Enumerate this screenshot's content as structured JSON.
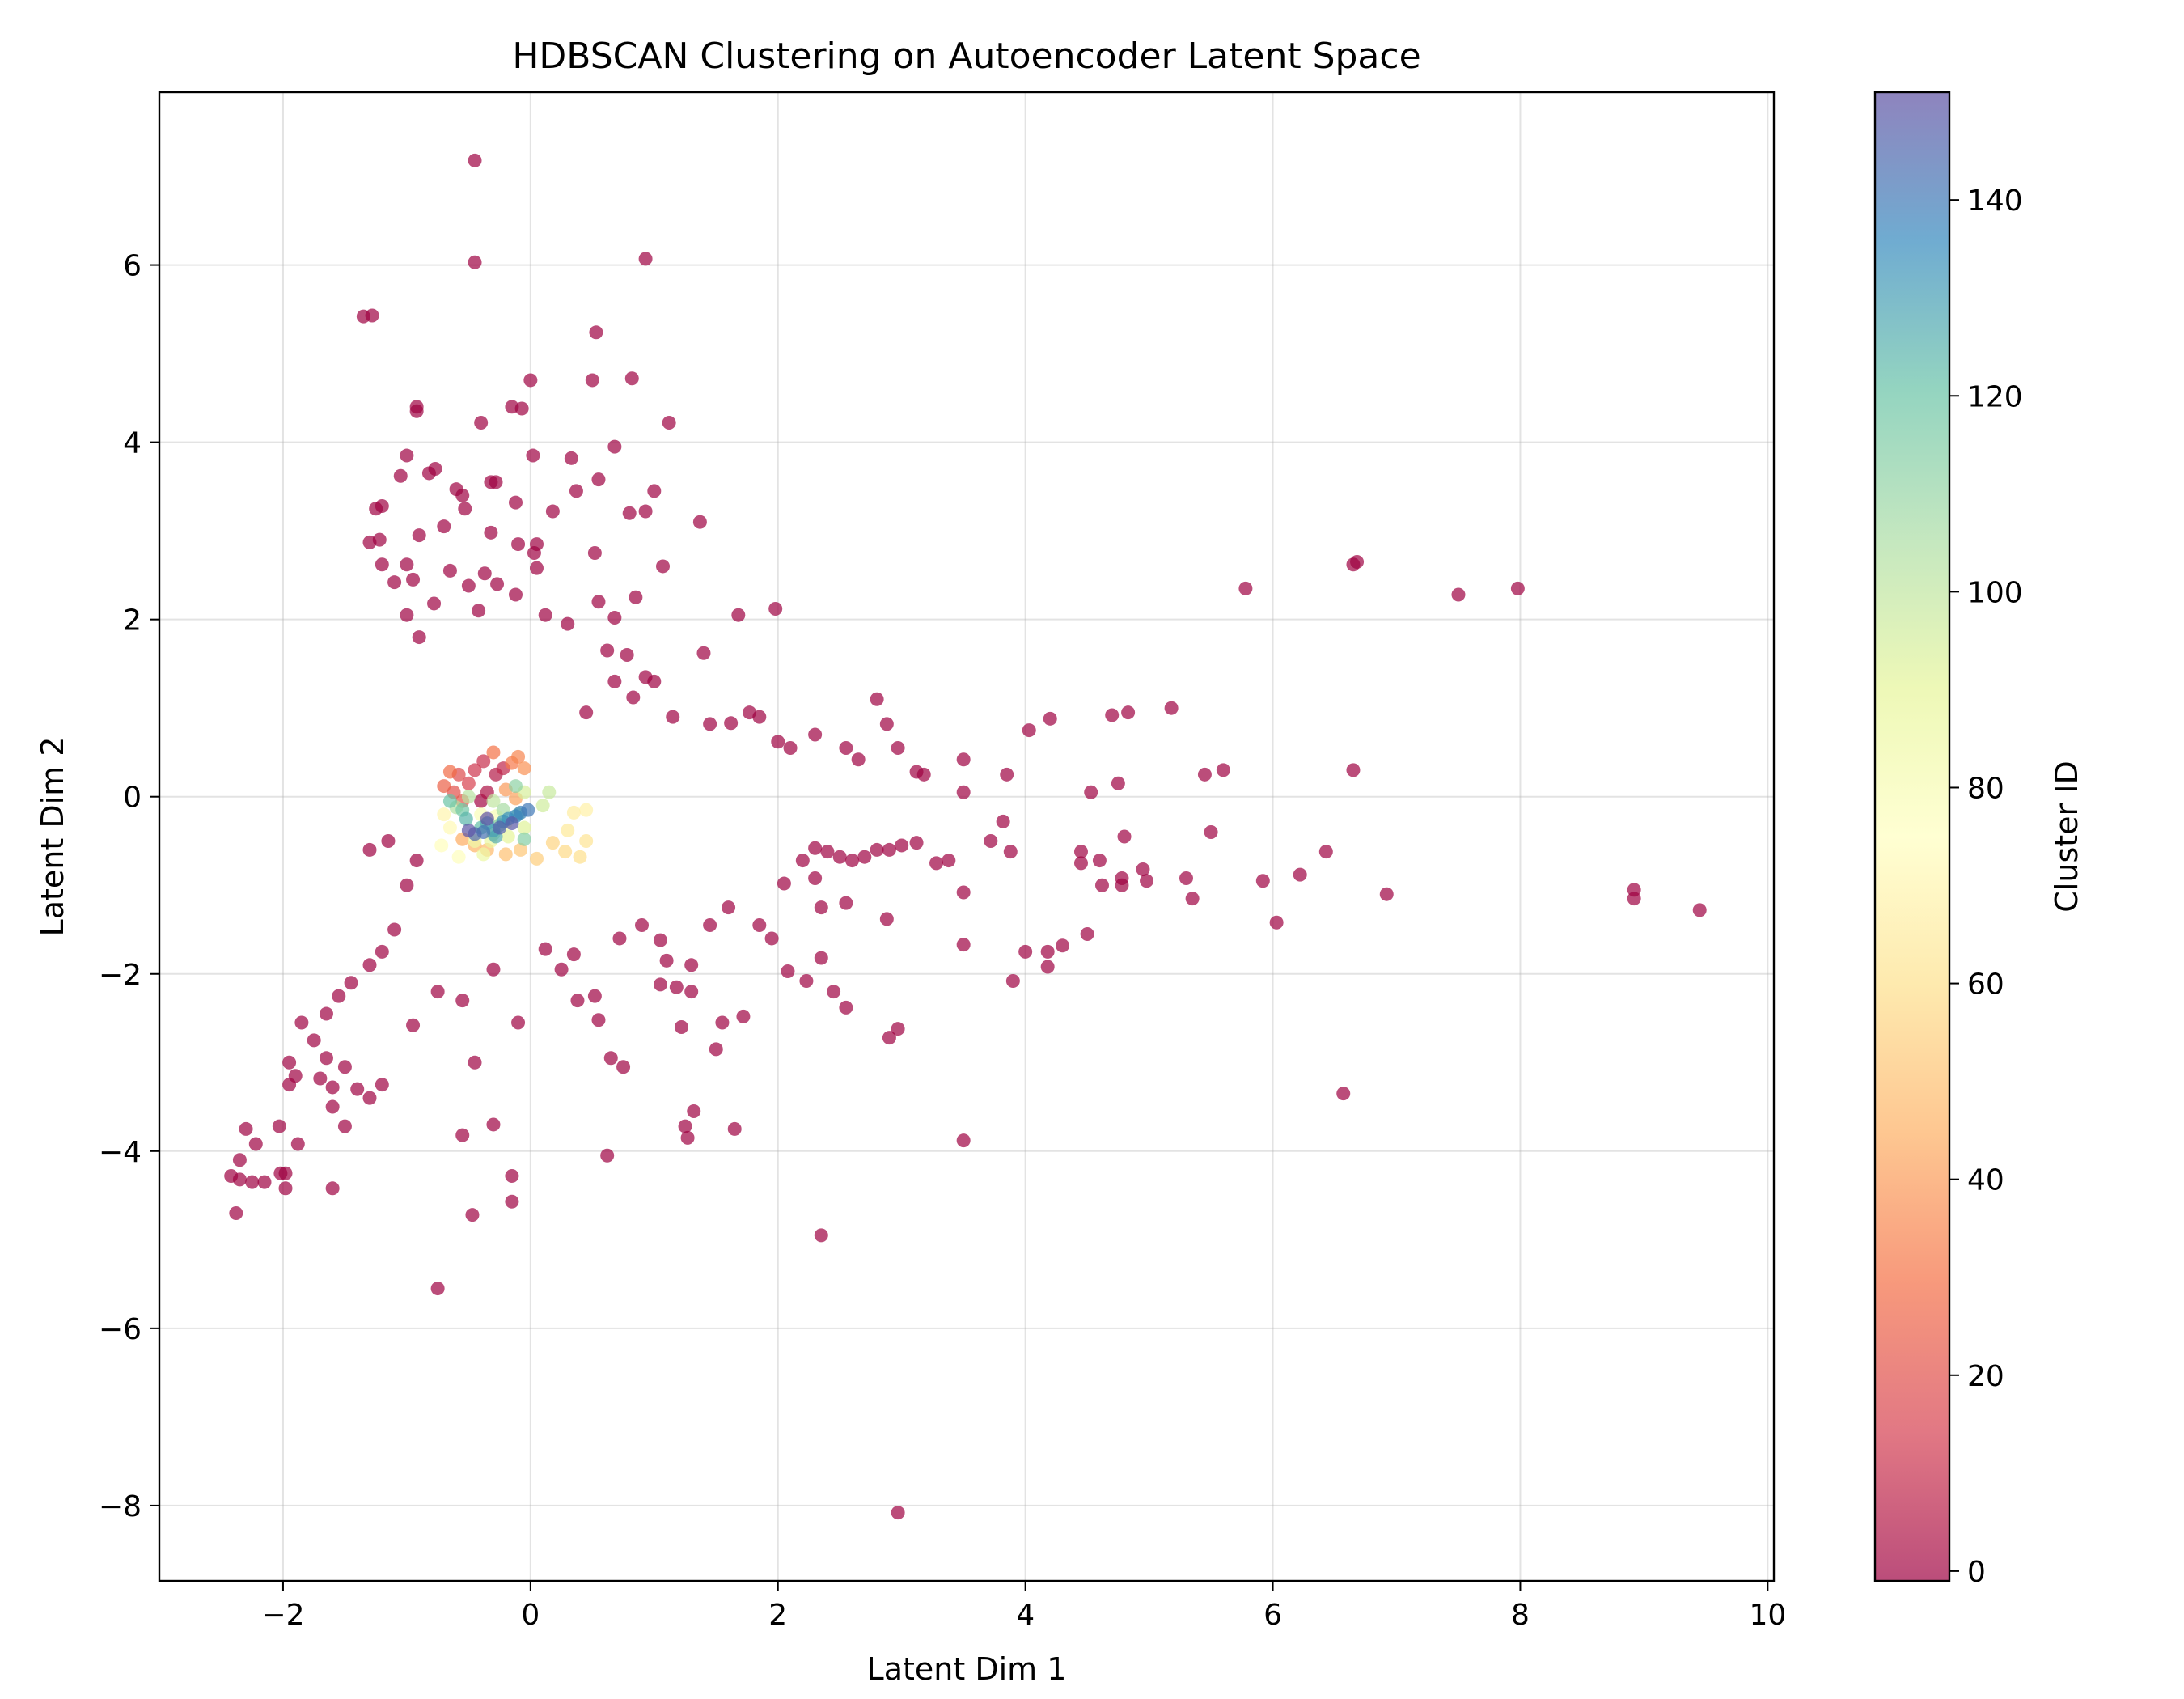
{
  "chart_data": {
    "type": "scatter",
    "title": "HDBSCAN Clustering on Autoencoder Latent Space",
    "xlabel": "Latent Dim 1",
    "ylabel": "Latent Dim 2",
    "xlim": [
      -3.0,
      10.05
    ],
    "ylim": [
      -8.85,
      7.95
    ],
    "xticks": [
      -2,
      0,
      2,
      4,
      6,
      8,
      10
    ],
    "yticks": [
      -8,
      -6,
      -4,
      -2,
      0,
      2,
      4,
      6
    ],
    "xtick_labels": [
      "−2",
      "0",
      "2",
      "4",
      "6",
      "8",
      "10"
    ],
    "ytick_labels": [
      "−8",
      "−6",
      "−4",
      "−2",
      "0",
      "2",
      "4",
      "6"
    ],
    "grid": true,
    "marker_alpha": 0.7,
    "colormap": "Spectral",
    "colorbar": {
      "label": "Cluster ID",
      "range": [
        -1,
        151
      ],
      "ticks": [
        0,
        20,
        40,
        60,
        80,
        100,
        120,
        140
      ],
      "tick_labels": [
        "0",
        "20",
        "40",
        "60",
        "80",
        "100",
        "120",
        "140"
      ],
      "colors": [
        "#9e0142",
        "#d53e4f",
        "#f46d43",
        "#fdae61",
        "#fee08b",
        "#ffffbf",
        "#e6f598",
        "#abdda4",
        "#66c2a5",
        "#3288bd",
        "#5e4fa2"
      ]
    },
    "points": [
      [
        -0.45,
        7.18,
        -1
      ],
      [
        -0.45,
        6.03,
        -1
      ],
      [
        0.93,
        6.07,
        -1
      ],
      [
        -1.35,
        5.42,
        -1
      ],
      [
        -1.28,
        5.43,
        -1
      ],
      [
        0.53,
        5.24,
        -1
      ],
      [
        0.0,
        4.7,
        -1
      ],
      [
        0.5,
        4.7,
        -1
      ],
      [
        0.82,
        4.72,
        -1
      ],
      [
        -0.92,
        4.35,
        -1
      ],
      [
        -0.92,
        4.4,
        -1
      ],
      [
        -0.4,
        4.22,
        -1
      ],
      [
        -0.15,
        4.4,
        -1
      ],
      [
        -0.07,
        4.38,
        -1
      ],
      [
        1.12,
        4.22,
        -1
      ],
      [
        0.68,
        3.95,
        -1
      ],
      [
        0.02,
        3.85,
        -1
      ],
      [
        0.33,
        3.82,
        -1
      ],
      [
        -1.0,
        3.85,
        -1
      ],
      [
        -1.05,
        3.62,
        -1
      ],
      [
        -0.82,
        3.65,
        -1
      ],
      [
        -0.77,
        3.7,
        -1
      ],
      [
        -0.32,
        3.55,
        -1
      ],
      [
        -0.28,
        3.55,
        -1
      ],
      [
        0.55,
        3.58,
        -1
      ],
      [
        -0.6,
        3.47,
        -1
      ],
      [
        -0.55,
        3.4,
        -1
      ],
      [
        -1.2,
        3.28,
        -1
      ],
      [
        -1.25,
        3.25,
        -1
      ],
      [
        -0.53,
        3.25,
        -1
      ],
      [
        -0.12,
        3.32,
        -1
      ],
      [
        0.37,
        3.45,
        -1
      ],
      [
        1.0,
        3.45,
        -1
      ],
      [
        0.93,
        3.22,
        -1
      ],
      [
        0.8,
        3.2,
        -1
      ],
      [
        0.18,
        3.22,
        -1
      ],
      [
        1.37,
        3.1,
        -1
      ],
      [
        -1.3,
        2.87,
        -1
      ],
      [
        -1.22,
        2.9,
        -1
      ],
      [
        -0.9,
        2.95,
        -1
      ],
      [
        -0.7,
        3.05,
        -1
      ],
      [
        -0.32,
        2.98,
        -1
      ],
      [
        -0.1,
        2.85,
        -1
      ],
      [
        0.05,
        2.85,
        -1
      ],
      [
        0.52,
        2.75,
        -1
      ],
      [
        0.03,
        2.75,
        -1
      ],
      [
        -1.2,
        2.62,
        -1
      ],
      [
        -1.0,
        2.62,
        -1
      ],
      [
        -0.65,
        2.55,
        -1
      ],
      [
        -0.37,
        2.52,
        -1
      ],
      [
        -1.1,
        2.42,
        -1
      ],
      [
        -0.95,
        2.45,
        -1
      ],
      [
        -0.5,
        2.38,
        -1
      ],
      [
        -0.27,
        2.4,
        -1
      ],
      [
        0.05,
        2.58,
        -1
      ],
      [
        -0.12,
        2.28,
        -1
      ],
      [
        0.55,
        2.2,
        -1
      ],
      [
        0.85,
        2.25,
        -1
      ],
      [
        1.07,
        2.6,
        -1
      ],
      [
        -0.78,
        2.18,
        -1
      ],
      [
        -1.0,
        2.05,
        -1
      ],
      [
        -0.42,
        2.1,
        -1
      ],
      [
        0.12,
        2.05,
        -1
      ],
      [
        0.3,
        1.95,
        -1
      ],
      [
        0.68,
        2.02,
        -1
      ],
      [
        1.68,
        2.05,
        -1
      ],
      [
        1.98,
        2.12,
        -1
      ],
      [
        1.4,
        1.62,
        -1
      ],
      [
        -0.9,
        1.8,
        -1
      ],
      [
        0.62,
        1.65,
        -1
      ],
      [
        0.78,
        1.6,
        -1
      ],
      [
        0.93,
        1.35,
        -1
      ],
      [
        1.0,
        1.3,
        -1
      ],
      [
        0.68,
        1.3,
        -1
      ],
      [
        0.83,
        1.12,
        -1
      ],
      [
        0.45,
        0.95,
        -1
      ],
      [
        1.15,
        0.9,
        -1
      ],
      [
        1.45,
        0.82,
        -1
      ],
      [
        1.62,
        0.83,
        -1
      ],
      [
        1.77,
        0.95,
        -1
      ],
      [
        1.85,
        0.9,
        -1
      ],
      [
        2.0,
        0.62,
        -1
      ],
      [
        2.1,
        0.55,
        -1
      ],
      [
        2.3,
        0.7,
        -1
      ],
      [
        2.55,
        0.55,
        -1
      ],
      [
        2.65,
        0.42,
        -1
      ],
      [
        2.8,
        1.1,
        -1
      ],
      [
        2.88,
        0.82,
        -1
      ],
      [
        2.97,
        0.55,
        -1
      ],
      [
        3.12,
        0.28,
        -1
      ],
      [
        3.18,
        0.25,
        -1
      ],
      [
        3.5,
        0.42,
        -1
      ],
      [
        3.5,
        0.05,
        -1
      ],
      [
        3.85,
        0.25,
        -1
      ],
      [
        4.03,
        0.75,
        -1
      ],
      [
        4.2,
        0.88,
        -1
      ],
      [
        4.7,
        0.92,
        -1
      ],
      [
        4.83,
        0.95,
        -1
      ],
      [
        5.18,
        1.0,
        -1
      ],
      [
        4.75,
        0.15,
        -1
      ],
      [
        4.53,
        0.05,
        -1
      ],
      [
        5.45,
        0.25,
        -1
      ],
      [
        5.6,
        0.3,
        -1
      ],
      [
        6.65,
        0.3,
        -1
      ],
      [
        5.5,
        -0.4,
        -1
      ],
      [
        4.8,
        -0.45,
        -1
      ],
      [
        4.45,
        -0.62,
        -1
      ],
      [
        4.45,
        -0.75,
        -1
      ],
      [
        4.6,
        -0.72,
        -1
      ],
      [
        4.78,
        -0.92,
        -1
      ],
      [
        4.78,
        -1.0,
        -1
      ],
      [
        4.62,
        -1.0,
        -1
      ],
      [
        4.95,
        -0.82,
        -1
      ],
      [
        4.98,
        -0.95,
        -1
      ],
      [
        5.3,
        -0.92,
        -1
      ],
      [
        5.35,
        -1.15,
        -1
      ],
      [
        5.92,
        -0.95,
        -1
      ],
      [
        6.22,
        -0.88,
        -1
      ],
      [
        6.43,
        -0.62,
        -1
      ],
      [
        6.03,
        -1.42,
        -1
      ],
      [
        6.92,
        -1.1,
        -1
      ],
      [
        4.0,
        -1.75,
        -1
      ],
      [
        4.18,
        -1.75,
        -1
      ],
      [
        4.18,
        -1.92,
        -1
      ],
      [
        4.3,
        -1.68,
        -1
      ],
      [
        4.5,
        -1.55,
        -1
      ],
      [
        3.9,
        -2.08,
        -1
      ],
      [
        3.82,
        -0.28,
        -1
      ],
      [
        3.72,
        -0.5,
        -1
      ],
      [
        3.88,
        -0.62,
        -1
      ],
      [
        3.5,
        -1.08,
        -1
      ],
      [
        3.5,
        -1.67,
        -1
      ],
      [
        3.38,
        -0.72,
        -1
      ],
      [
        3.28,
        -0.75,
        -1
      ],
      [
        3.12,
        -0.52,
        -1
      ],
      [
        3.0,
        -0.55,
        -1
      ],
      [
        2.9,
        -0.6,
        -1
      ],
      [
        2.8,
        -0.6,
        -1
      ],
      [
        2.7,
        -0.68,
        -1
      ],
      [
        2.6,
        -0.72,
        -1
      ],
      [
        2.5,
        -0.68,
        -1
      ],
      [
        2.4,
        -0.62,
        -1
      ],
      [
        2.3,
        -0.58,
        -1
      ],
      [
        2.2,
        -0.72,
        -1
      ],
      [
        2.88,
        -1.38,
        -1
      ],
      [
        2.55,
        -1.2,
        -1
      ],
      [
        2.35,
        -1.25,
        -1
      ],
      [
        2.35,
        -1.82,
        -1
      ],
      [
        2.23,
        -2.08,
        -1
      ],
      [
        2.45,
        -2.2,
        -1
      ],
      [
        2.55,
        -2.38,
        -1
      ],
      [
        2.97,
        -2.62,
        -1
      ],
      [
        2.9,
        -2.72,
        -1
      ],
      [
        2.08,
        -1.97,
        -1
      ],
      [
        1.72,
        -2.48,
        -1
      ],
      [
        1.55,
        -2.55,
        -1
      ],
      [
        1.3,
        -2.2,
        -1
      ],
      [
        1.18,
        -2.15,
        -1
      ],
      [
        1.05,
        -2.12,
        -1
      ],
      [
        1.22,
        -2.6,
        -1
      ],
      [
        1.5,
        -2.85,
        -1
      ],
      [
        1.65,
        -3.75,
        -1
      ],
      [
        1.32,
        -3.55,
        -1
      ],
      [
        1.25,
        -3.72,
        -1
      ],
      [
        1.27,
        -3.85,
        -1
      ],
      [
        0.75,
        -3.05,
        -1
      ],
      [
        0.65,
        -2.95,
        -1
      ],
      [
        0.62,
        -4.05,
        -1
      ],
      [
        -0.1,
        -2.55,
        -1
      ],
      [
        -0.45,
        -3.0,
        -1
      ],
      [
        -0.3,
        -3.7,
        -1
      ],
      [
        -0.55,
        -3.82,
        -1
      ],
      [
        -0.47,
        -4.72,
        -1
      ],
      [
        -0.15,
        -4.28,
        -1
      ],
      [
        -0.15,
        -4.57,
        -1
      ],
      [
        -0.75,
        -5.55,
        -1
      ],
      [
        -0.55,
        -2.3,
        -1
      ],
      [
        -0.75,
        -2.2,
        -1
      ],
      [
        -0.95,
        -2.58,
        -1
      ],
      [
        -1.2,
        -3.25,
        -1
      ],
      [
        -1.3,
        -3.4,
        -1
      ],
      [
        -1.4,
        -3.3,
        -1
      ],
      [
        -1.5,
        -3.05,
        -1
      ],
      [
        -1.6,
        -3.28,
        -1
      ],
      [
        -1.6,
        -3.5,
        -1
      ],
      [
        -1.65,
        -2.95,
        -1
      ],
      [
        -1.7,
        -3.18,
        -1
      ],
      [
        -1.75,
        -2.75,
        -1
      ],
      [
        -1.85,
        -2.55,
        -1
      ],
      [
        -1.65,
        -2.45,
        -1
      ],
      [
        -1.55,
        -2.25,
        -1
      ],
      [
        -1.45,
        -2.1,
        -1
      ],
      [
        -1.5,
        -3.72,
        -1
      ],
      [
        -1.6,
        -4.42,
        -1
      ],
      [
        -1.9,
        -3.15,
        -1
      ],
      [
        -1.95,
        -3.25,
        -1
      ],
      [
        -1.95,
        -3.0,
        -1
      ],
      [
        -2.03,
        -3.72,
        -1
      ],
      [
        -1.88,
        -3.92,
        -1
      ],
      [
        -2.02,
        -4.25,
        -1
      ],
      [
        -1.98,
        -4.25,
        -1
      ],
      [
        -1.98,
        -4.42,
        -1
      ],
      [
        -2.15,
        -4.35,
        -1
      ],
      [
        -2.25,
        -4.35,
        -1
      ],
      [
        -2.22,
        -3.92,
        -1
      ],
      [
        -2.3,
        -3.75,
        -1
      ],
      [
        -2.35,
        -4.1,
        -1
      ],
      [
        -2.42,
        -4.28,
        -1
      ],
      [
        -2.35,
        -4.32,
        -1
      ],
      [
        -2.38,
        -4.7,
        -1
      ],
      [
        2.97,
        -8.08,
        -1
      ],
      [
        2.35,
        -4.95,
        -1
      ],
      [
        3.5,
        -3.88,
        -1
      ],
      [
        6.57,
        -3.35,
        -1
      ],
      [
        5.78,
        2.35,
        -1
      ],
      [
        6.65,
        2.62,
        -1
      ],
      [
        6.68,
        2.65,
        -1
      ],
      [
        7.5,
        2.28,
        -1
      ],
      [
        7.98,
        2.35,
        -1
      ],
      [
        8.92,
        -1.05,
        -1
      ],
      [
        8.92,
        -1.15,
        -1
      ],
      [
        9.45,
        -1.28,
        -1
      ],
      [
        2.05,
        -0.98,
        -1
      ],
      [
        1.85,
        -1.45,
        -1
      ],
      [
        1.6,
        -1.25,
        -1
      ],
      [
        1.45,
        -1.45,
        -1
      ],
      [
        1.95,
        -1.6,
        -1
      ],
      [
        2.3,
        -0.92,
        -1
      ],
      [
        1.3,
        -1.9,
        -1
      ],
      [
        1.1,
        -1.85,
        -1
      ],
      [
        0.55,
        -2.52,
        -1
      ],
      [
        0.35,
        -1.78,
        -1
      ],
      [
        0.25,
        -1.95,
        -1
      ],
      [
        -0.3,
        -1.95,
        -1
      ],
      [
        -1.3,
        -0.6,
        -1
      ],
      [
        -1.15,
        -0.5,
        -1
      ],
      [
        -1.0,
        -1.0,
        -1
      ],
      [
        -0.92,
        -0.72,
        -1
      ],
      [
        -1.1,
        -1.5,
        -1
      ],
      [
        -1.2,
        -1.75,
        -1
      ],
      [
        -1.3,
        -1.9,
        -1
      ],
      [
        0.52,
        -2.25,
        -1
      ],
      [
        0.38,
        -2.3,
        -1
      ],
      [
        0.72,
        -1.6,
        -1
      ],
      [
        0.9,
        -1.45,
        -1
      ],
      [
        1.05,
        -1.62,
        -1
      ],
      [
        0.12,
        -1.72,
        -1
      ],
      [
        -0.4,
        -0.05,
        0
      ],
      [
        -0.35,
        0.05,
        3
      ],
      [
        -0.28,
        0.25,
        5
      ],
      [
        -0.22,
        0.32,
        8
      ],
      [
        -0.38,
        0.4,
        10
      ],
      [
        -0.45,
        0.3,
        12
      ],
      [
        -0.5,
        0.15,
        15
      ],
      [
        -0.58,
        0.25,
        18
      ],
      [
        -0.62,
        0.05,
        20
      ],
      [
        -0.55,
        -0.05,
        22
      ],
      [
        -0.7,
        0.12,
        25
      ],
      [
        -0.65,
        0.28,
        28
      ],
      [
        -0.3,
        0.5,
        30
      ],
      [
        -0.15,
        0.38,
        32
      ],
      [
        -0.1,
        0.45,
        35
      ],
      [
        -0.05,
        0.32,
        38
      ],
      [
        -0.2,
        0.08,
        40
      ],
      [
        -0.12,
        -0.02,
        42
      ],
      [
        -0.55,
        -0.48,
        44
      ],
      [
        -0.45,
        -0.55,
        46
      ],
      [
        -0.35,
        -0.6,
        48
      ],
      [
        -0.2,
        -0.65,
        50
      ],
      [
        -0.08,
        -0.6,
        52
      ],
      [
        0.05,
        -0.7,
        54
      ],
      [
        0.18,
        -0.52,
        56
      ],
      [
        0.28,
        -0.62,
        58
      ],
      [
        0.4,
        -0.68,
        60
      ],
      [
        0.45,
        -0.5,
        62
      ],
      [
        0.3,
        -0.38,
        64
      ],
      [
        0.35,
        -0.18,
        66
      ],
      [
        0.45,
        -0.15,
        68
      ],
      [
        -0.7,
        -0.2,
        70
      ],
      [
        -0.65,
        -0.35,
        72
      ],
      [
        -0.72,
        -0.55,
        74
      ],
      [
        -0.58,
        -0.68,
        76
      ],
      [
        -0.4,
        -0.2,
        78
      ],
      [
        -0.28,
        -0.22,
        80
      ],
      [
        -0.2,
        -0.3,
        82
      ],
      [
        -0.45,
        -0.5,
        84
      ],
      [
        -0.38,
        -0.65,
        86
      ],
      [
        -0.32,
        -0.5,
        88
      ],
      [
        -0.18,
        -0.45,
        90
      ],
      [
        -0.05,
        -0.35,
        92
      ],
      [
        -0.05,
        0.05,
        94
      ],
      [
        0.1,
        -0.1,
        96
      ],
      [
        0.15,
        0.05,
        98
      ],
      [
        -0.3,
        -0.05,
        100
      ],
      [
        -0.5,
        0.0,
        102
      ],
      [
        -0.6,
        -0.12,
        104
      ],
      [
        -0.22,
        -0.15,
        106
      ],
      [
        -0.3,
        -0.42,
        108
      ],
      [
        -0.1,
        -0.2,
        110
      ],
      [
        -0.12,
        0.12,
        112
      ],
      [
        -0.05,
        -0.48,
        114
      ],
      [
        -0.25,
        -0.32,
        116
      ],
      [
        -0.55,
        -0.15,
        118
      ],
      [
        -0.65,
        -0.05,
        120
      ],
      [
        -0.4,
        -0.35,
        122
      ],
      [
        -0.52,
        -0.25,
        124
      ],
      [
        -0.28,
        -0.45,
        126
      ],
      [
        -0.35,
        -0.3,
        128
      ],
      [
        -0.3,
        -0.38,
        130
      ],
      [
        -0.22,
        -0.28,
        132
      ],
      [
        -0.18,
        -0.25,
        134
      ],
      [
        -0.12,
        -0.22,
        136
      ],
      [
        -0.08,
        -0.18,
        138
      ],
      [
        -0.02,
        -0.15,
        140
      ],
      [
        -0.38,
        -0.4,
        142
      ],
      [
        -0.45,
        -0.42,
        145
      ],
      [
        -0.25,
        -0.35,
        147
      ],
      [
        -0.15,
        -0.3,
        149
      ],
      [
        -0.5,
        -0.38,
        150
      ],
      [
        -0.35,
        -0.25,
        151
      ]
    ]
  }
}
